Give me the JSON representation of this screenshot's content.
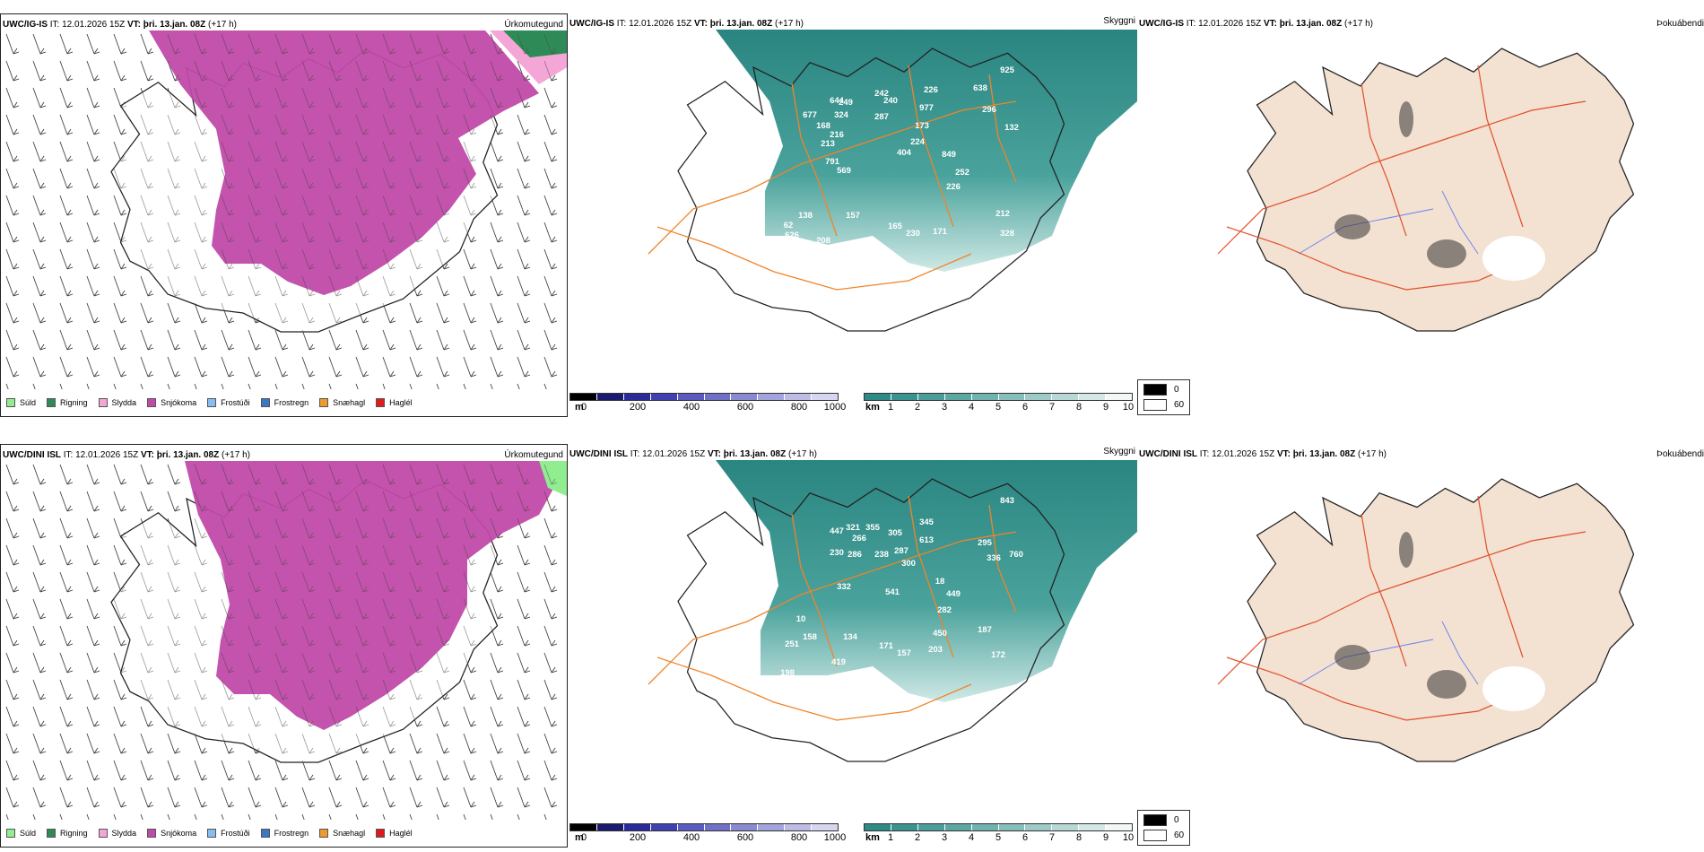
{
  "issue_time": "IT: 12.01.2026 15Z",
  "valid_time": "VT: þri. 13.jan. 08Z",
  "lead_time": "(+17 h)",
  "rows": [
    {
      "model": "UWC/IG-IS",
      "panels": {
        "precip": "Úrkomutegund",
        "vis": "Skyggni",
        "fog": "Þokuábendi"
      },
      "labels": [
        "925",
        "677",
        "644",
        "249",
        "242",
        "240",
        "226",
        "638",
        "296",
        "324",
        "287",
        "977",
        "173",
        "132",
        "168",
        "216",
        "224",
        "213",
        "404",
        "849",
        "791",
        "569",
        "252",
        "226",
        "212",
        "138",
        "157",
        "165",
        "230",
        "171",
        "328",
        "626",
        "208",
        "62"
      ]
    },
    {
      "model": "UWC/DINI ISL",
      "panels": {
        "precip": "Úrkomutegund",
        "vis": "Skyggni",
        "fog": "Þokuábendi"
      },
      "labels": [
        "843",
        "447",
        "321",
        "355",
        "305",
        "345",
        "266",
        "613",
        "295",
        "230",
        "286",
        "238",
        "287",
        "300",
        "336",
        "760",
        "18",
        "332",
        "541",
        "449",
        "282",
        "187",
        "450",
        "251",
        "158",
        "134",
        "171",
        "157",
        "203",
        "172",
        "419",
        "198",
        "10"
      ]
    }
  ],
  "precip_legend": [
    {
      "label": "Súld",
      "color": "#90ee90"
    },
    {
      "label": "Rigning",
      "color": "#2e8b57"
    },
    {
      "label": "Slydda",
      "color": "#f4a6d7"
    },
    {
      "label": "Snjókoma",
      "color": "#c04aa8"
    },
    {
      "label": "Frostúði",
      "color": "#87bdf0"
    },
    {
      "label": "Frostregn",
      "color": "#3a78c6"
    },
    {
      "label": "Snæhagl",
      "color": "#ef9a2e"
    },
    {
      "label": "Haglél",
      "color": "#e01b1b"
    }
  ],
  "elev_bar": {
    "unit": "m",
    "ticks": [
      "0",
      "200",
      "400",
      "600",
      "800",
      "1000"
    ]
  },
  "vis_bar": {
    "unit": "km",
    "ticks": [
      "1",
      "2",
      "3",
      "4",
      "5",
      "6",
      "7",
      "8",
      "9",
      "10"
    ]
  },
  "fog_legend": [
    "0",
    "60"
  ],
  "colors": {
    "snow": "#c04aa8",
    "teal": "#2d8a86",
    "road": "#f0842a",
    "land": "#f3e1d2",
    "coast": "#222222"
  }
}
